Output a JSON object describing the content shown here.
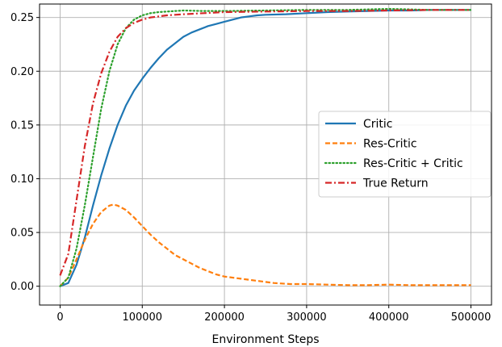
{
  "chart_data": {
    "type": "line",
    "title": "",
    "xlabel": "Environment Steps",
    "ylabel": "",
    "xlim": [
      -25000,
      525000
    ],
    "ylim": [
      -0.0175,
      0.2625
    ],
    "xticks": [
      0,
      100000,
      200000,
      300000,
      400000,
      500000
    ],
    "xtick_labels": [
      "0",
      "100000",
      "200000",
      "300000",
      "400000",
      "500000"
    ],
    "yticks": [
      0.0,
      0.05,
      0.1,
      0.15,
      0.2,
      0.25
    ],
    "ytick_labels": [
      "0.00",
      "0.05",
      "0.10",
      "0.15",
      "0.20",
      "0.25"
    ],
    "grid": true,
    "legend_position": "center-right",
    "series": [
      {
        "name": "Critic",
        "color": "#1f77b4",
        "dash": "solid",
        "x": [
          0,
          10000,
          20000,
          30000,
          40000,
          50000,
          60000,
          70000,
          80000,
          90000,
          100000,
          110000,
          120000,
          130000,
          140000,
          150000,
          160000,
          170000,
          180000,
          190000,
          200000,
          210000,
          220000,
          230000,
          240000,
          250000,
          275000,
          300000,
          325000,
          350000,
          375000,
          400000,
          425000,
          450000,
          475000,
          500000
        ],
        "y": [
          0.0,
          0.003,
          0.02,
          0.045,
          0.075,
          0.103,
          0.128,
          0.15,
          0.168,
          0.182,
          0.193,
          0.203,
          0.212,
          0.22,
          0.226,
          0.232,
          0.236,
          0.239,
          0.242,
          0.244,
          0.246,
          0.248,
          0.25,
          0.251,
          0.252,
          0.2525,
          0.253,
          0.254,
          0.255,
          0.2555,
          0.256,
          0.2565,
          0.2565,
          0.257,
          0.257,
          0.257
        ]
      },
      {
        "name": "Res-Critic",
        "color": "#ff7f0e",
        "dash": "dashed",
        "x": [
          0,
          10000,
          20000,
          30000,
          40000,
          50000,
          60000,
          65000,
          70000,
          80000,
          90000,
          100000,
          110000,
          120000,
          130000,
          140000,
          150000,
          160000,
          170000,
          180000,
          190000,
          200000,
          220000,
          240000,
          260000,
          280000,
          300000,
          325000,
          350000,
          375000,
          400000,
          425000,
          450000,
          475000,
          500000
        ],
        "y": [
          0.0,
          0.008,
          0.025,
          0.043,
          0.058,
          0.069,
          0.075,
          0.076,
          0.075,
          0.071,
          0.064,
          0.056,
          0.048,
          0.041,
          0.035,
          0.029,
          0.025,
          0.021,
          0.017,
          0.014,
          0.011,
          0.009,
          0.007,
          0.005,
          0.003,
          0.002,
          0.002,
          0.0015,
          0.001,
          0.001,
          0.0015,
          0.001,
          0.001,
          0.001,
          0.001
        ]
      },
      {
        "name": "Res-Critic + Critic",
        "color": "#2ca02c",
        "dash": "dotted",
        "x": [
          0,
          10000,
          20000,
          30000,
          40000,
          50000,
          60000,
          70000,
          80000,
          90000,
          100000,
          110000,
          120000,
          130000,
          140000,
          150000,
          175000,
          200000,
          250000,
          300000,
          350000,
          400000,
          450000,
          500000
        ],
        "y": [
          0.0,
          0.008,
          0.035,
          0.075,
          0.12,
          0.165,
          0.2,
          0.225,
          0.24,
          0.248,
          0.252,
          0.254,
          0.255,
          0.2555,
          0.256,
          0.2565,
          0.256,
          0.256,
          0.2565,
          0.257,
          0.257,
          0.258,
          0.257,
          0.257
        ]
      },
      {
        "name": "True Return",
        "color": "#d62728",
        "dash": "dashdot",
        "x": [
          0,
          10000,
          20000,
          30000,
          40000,
          50000,
          60000,
          70000,
          80000,
          90000,
          100000,
          110000,
          120000,
          130000,
          140000,
          150000,
          175000,
          200000,
          250000,
          300000,
          350000,
          400000,
          450000,
          500000
        ],
        "y": [
          0.01,
          0.03,
          0.08,
          0.13,
          0.17,
          0.198,
          0.218,
          0.232,
          0.24,
          0.245,
          0.248,
          0.25,
          0.251,
          0.252,
          0.2525,
          0.253,
          0.254,
          0.255,
          0.2555,
          0.256,
          0.256,
          0.2565,
          0.257,
          0.257
        ]
      }
    ]
  }
}
